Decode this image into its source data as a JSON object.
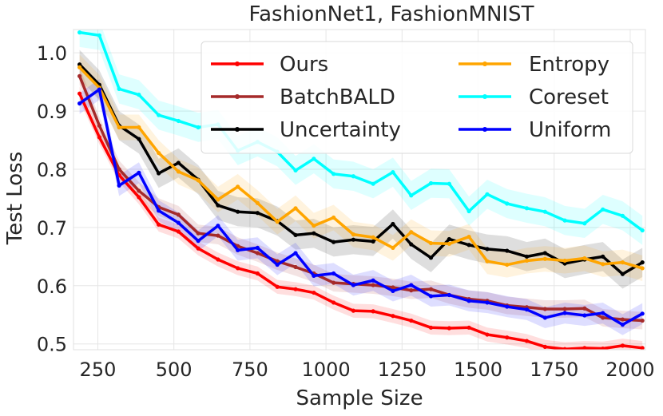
{
  "chart_data": {
    "type": "line",
    "title": "FashionNet1, FashionMNIST",
    "xlabel": "Sample Size",
    "ylabel": "Test Loss",
    "xlim": [
      170,
      2050
    ],
    "ylim": [
      0.49,
      1.04
    ],
    "xticks": [
      250,
      500,
      750,
      1000,
      1250,
      1500,
      1750,
      2000
    ],
    "yticks": [
      0.5,
      0.6,
      0.7,
      0.8,
      0.9,
      1.0
    ],
    "xtick_labels": [
      "250",
      "500",
      "750",
      "1000",
      "1250",
      "1500",
      "1750",
      "2000"
    ],
    "ytick_labels": [
      "0.5",
      "0.6",
      "0.7",
      "0.8",
      "0.9",
      "1.0"
    ],
    "grid": true,
    "legend_position": "top-right",
    "x": [
      190,
      255,
      320,
      385,
      450,
      515,
      580,
      645,
      710,
      775,
      840,
      900,
      960,
      1025,
      1090,
      1155,
      1220,
      1280,
      1345,
      1405,
      1470,
      1530,
      1595,
      1660,
      1720,
      1785,
      1850,
      1910,
      1975,
      2040
    ],
    "series": [
      {
        "name": "Ours",
        "color": "#ff0000",
        "band": 0.012,
        "values": [
          0.93,
          0.855,
          0.79,
          0.752,
          0.705,
          0.693,
          0.664,
          0.645,
          0.63,
          0.621,
          0.598,
          0.594,
          0.588,
          0.571,
          0.557,
          0.556,
          0.548,
          0.54,
          0.528,
          0.527,
          0.528,
          0.516,
          0.511,
          0.505,
          0.495,
          0.491,
          0.493,
          0.492,
          0.497,
          0.493
        ]
      },
      {
        "name": "BatchBALD",
        "color": "#a52a2a",
        "band": 0.015,
        "values": [
          0.96,
          0.875,
          0.8,
          0.763,
          0.735,
          0.722,
          0.69,
          0.686,
          0.668,
          0.656,
          0.642,
          0.632,
          0.621,
          0.605,
          0.603,
          0.601,
          0.597,
          0.592,
          0.594,
          0.584,
          0.577,
          0.574,
          0.566,
          0.563,
          0.56,
          0.56,
          0.561,
          0.545,
          0.542,
          0.54
        ]
      },
      {
        "name": "Uncertainty",
        "color": "#000000",
        "band": 0.025,
        "values": [
          0.98,
          0.945,
          0.875,
          0.852,
          0.793,
          0.811,
          0.782,
          0.738,
          0.727,
          0.725,
          0.711,
          0.687,
          0.69,
          0.675,
          0.679,
          0.676,
          0.706,
          0.671,
          0.648,
          0.68,
          0.67,
          0.663,
          0.66,
          0.65,
          0.656,
          0.638,
          0.645,
          0.65,
          0.62,
          0.64
        ]
      },
      {
        "name": "Entropy",
        "color": "#ffa500",
        "band": 0.022,
        "values": [
          0.975,
          0.94,
          0.872,
          0.872,
          0.828,
          0.796,
          0.781,
          0.748,
          0.77,
          0.742,
          0.71,
          0.733,
          0.703,
          0.717,
          0.688,
          0.683,
          0.665,
          0.692,
          0.673,
          0.672,
          0.684,
          0.642,
          0.636,
          0.643,
          0.646,
          0.643,
          0.647,
          0.637,
          0.64,
          0.63
        ]
      },
      {
        "name": "Coreset",
        "color": "#00ffff",
        "band": 0.025,
        "values": [
          1.035,
          1.03,
          0.938,
          0.928,
          0.893,
          0.883,
          0.872,
          0.877,
          0.832,
          0.847,
          0.83,
          0.798,
          0.818,
          0.792,
          0.788,
          0.775,
          0.795,
          0.755,
          0.776,
          0.775,
          0.728,
          0.757,
          0.741,
          0.733,
          0.727,
          0.712,
          0.707,
          0.731,
          0.72,
          0.695
        ]
      },
      {
        "name": "Uniform",
        "color": "#0000ff",
        "band": 0.018,
        "values": [
          0.913,
          0.937,
          0.772,
          0.794,
          0.729,
          0.708,
          0.677,
          0.703,
          0.661,
          0.665,
          0.636,
          0.656,
          0.617,
          0.621,
          0.601,
          0.609,
          0.591,
          0.601,
          0.582,
          0.584,
          0.574,
          0.571,
          0.564,
          0.559,
          0.545,
          0.553,
          0.549,
          0.553,
          0.533,
          0.552
        ]
      }
    ],
    "legend": {
      "col1": [
        "Ours",
        "BatchBALD",
        "Uncertainty"
      ],
      "col2": [
        "Entropy",
        "Coreset",
        "Uniform"
      ]
    }
  }
}
